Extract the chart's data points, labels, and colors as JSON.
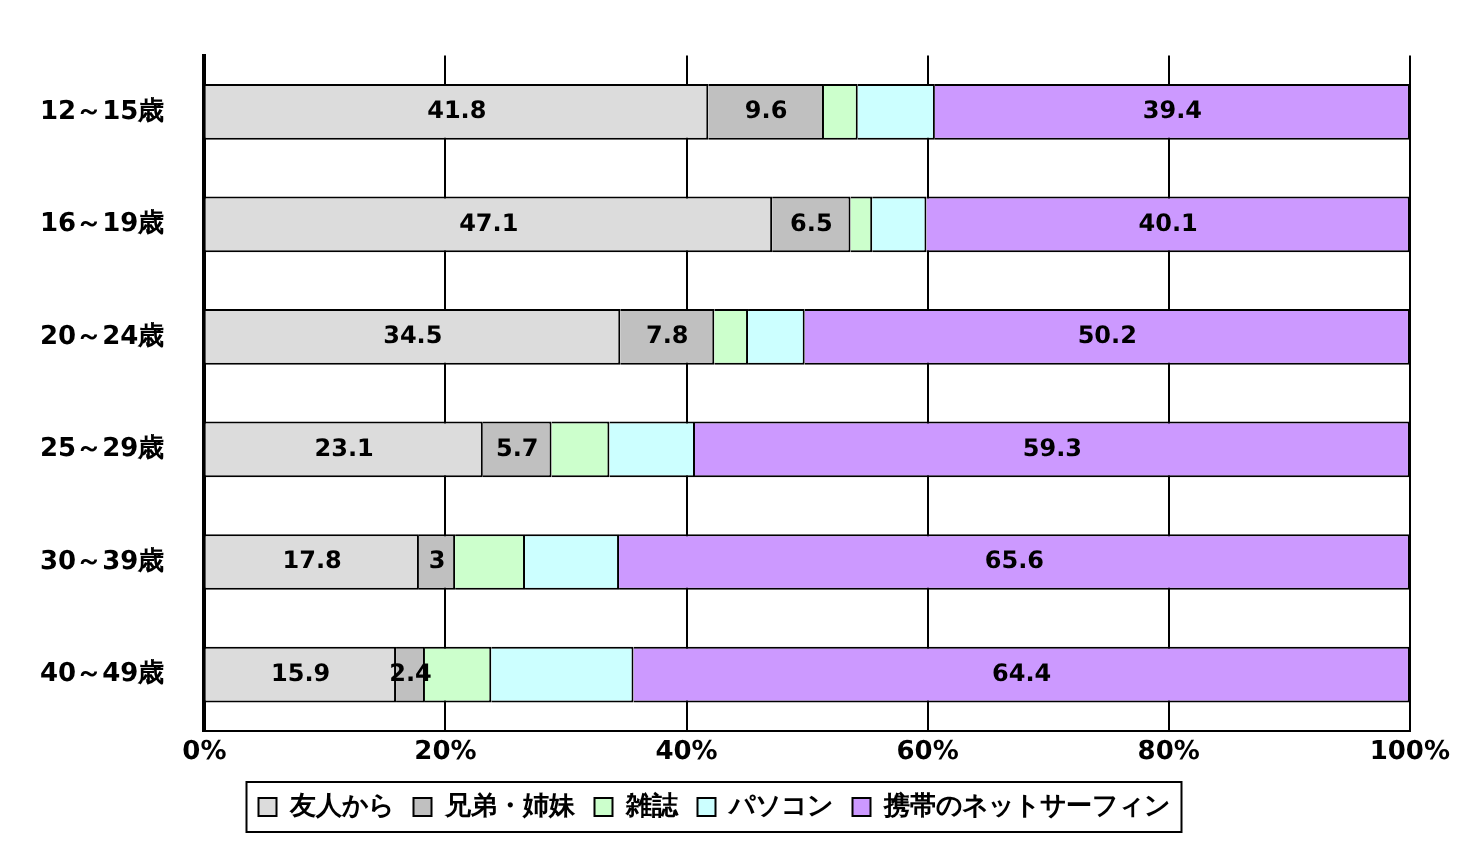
{
  "chart_data": {
    "type": "bar",
    "orientation": "horizontal",
    "stacked": true,
    "categories": [
      "12～15歳",
      "16～19歳",
      "20～24歳",
      "25～29歳",
      "30～39歳",
      "40～49歳"
    ],
    "series": [
      {
        "name": "友人から",
        "color": "#dcdcdc",
        "values": [
          41.8,
          47.1,
          34.5,
          23.1,
          17.8,
          15.9
        ],
        "value_labels": [
          "41.8",
          "47.1",
          "34.5",
          "23.1",
          "17.8",
          "15.9"
        ]
      },
      {
        "name": "兄弟・姉妹",
        "color": "#c0c0c0",
        "values": [
          9.6,
          6.5,
          7.8,
          5.7,
          3,
          2.4
        ],
        "value_labels": [
          "9.6",
          "6.5",
          "7.8",
          "5.7",
          "3",
          "2.4"
        ]
      },
      {
        "name": "雑誌",
        "color": "#ccffcc",
        "values": [
          2.8,
          1.8,
          2.8,
          4.8,
          5.8,
          5.5
        ]
      },
      {
        "name": "パソコン",
        "color": "#ccffff",
        "values": [
          6.4,
          4.5,
          4.7,
          7.1,
          7.8,
          11.8
        ]
      },
      {
        "name": "携帯のネットサーフィン",
        "color": "#cc99ff",
        "values": [
          39.4,
          40.1,
          50.2,
          59.3,
          65.6,
          64.4
        ],
        "value_labels": [
          "39.4",
          "40.1",
          "50.2",
          "59.3",
          "65.6",
          "64.4"
        ]
      }
    ],
    "xlim": [
      0,
      100
    ],
    "xticks": [
      {
        "value": 0,
        "label": "0%"
      },
      {
        "value": 20,
        "label": "20%"
      },
      {
        "value": 40,
        "label": "40%"
      },
      {
        "value": 60,
        "label": "60%"
      },
      {
        "value": 80,
        "label": "80%"
      },
      {
        "value": 100,
        "label": "100%"
      }
    ],
    "grid": "x",
    "legend": "bottom"
  }
}
